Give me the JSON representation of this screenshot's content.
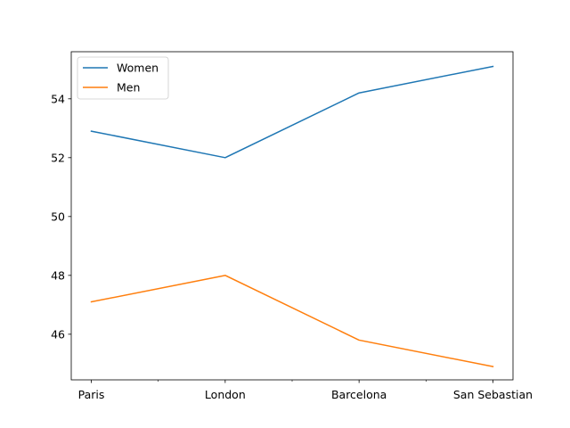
{
  "chart_data": {
    "type": "line",
    "title": "",
    "xlabel": "",
    "ylabel": "",
    "categories": [
      "Paris",
      "London",
      "Barcelona",
      "San Sebastian"
    ],
    "minor_x_ticks": [
      0.5,
      1.5,
      2.5
    ],
    "x_range": [
      -0.15,
      3.15
    ],
    "y_range": [
      44.45,
      55.6
    ],
    "y_ticks": [
      46,
      48,
      50,
      52,
      54
    ],
    "grid": false,
    "legend_position": "top-left",
    "series": [
      {
        "name": "Women",
        "color": "#1f77b4",
        "values": [
          52.9,
          52.0,
          54.2,
          55.1
        ]
      },
      {
        "name": "Men",
        "color": "#ff7f0e",
        "values": [
          47.1,
          48.0,
          45.8,
          44.9
        ]
      }
    ]
  }
}
